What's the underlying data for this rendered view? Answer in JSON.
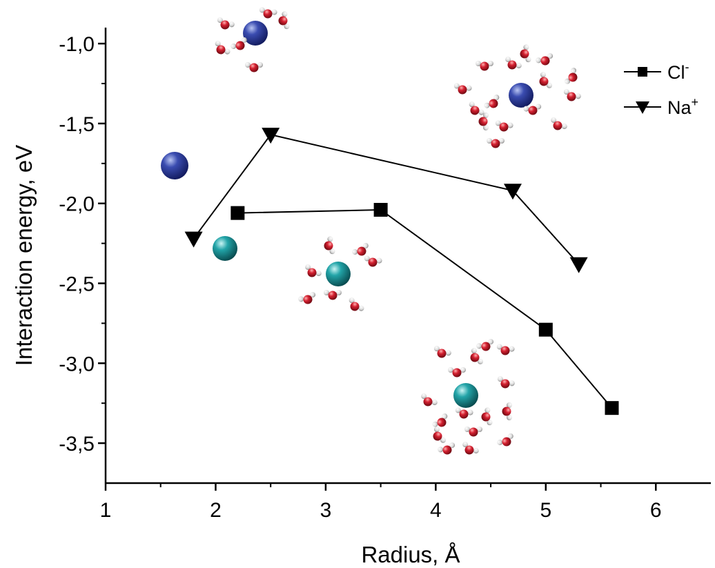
{
  "chart_data": {
    "type": "line",
    "xlabel": "Radius, Å",
    "ylabel": "Interaction energy, eV",
    "xlim": [
      1,
      6.5
    ],
    "ylim": [
      -3.75,
      -0.9
    ],
    "xticks": [
      1,
      2,
      3,
      4,
      5,
      6
    ],
    "xtick_labels": [
      "1",
      "2",
      "3",
      "4",
      "5",
      "6"
    ],
    "yticks": [
      -1.0,
      -1.5,
      -2.0,
      -2.5,
      -3.0,
      -3.5
    ],
    "ytick_labels": [
      "-1,0",
      "-1,5",
      "-2,0",
      "-2,5",
      "-3,0",
      "-3,5"
    ],
    "grid": false,
    "legend_position": "top-right",
    "series": [
      {
        "name": "Cl⁻",
        "label_main": "Cl",
        "label_sup": "-",
        "marker": "square",
        "color": "#000000",
        "x": [
          2.2,
          3.5,
          5.0,
          5.6
        ],
        "y": [
          -2.06,
          -2.04,
          -2.79,
          -3.28
        ]
      },
      {
        "name": "Na⁺",
        "label_main": "Na",
        "label_sup": "+",
        "marker": "triangle-down",
        "color": "#000000",
        "x": [
          1.8,
          2.5,
          4.7,
          5.3
        ],
        "y": [
          -2.22,
          -1.57,
          -1.92,
          -2.38
        ]
      }
    ],
    "colors": {
      "sodium_ion": "#2a3a9a",
      "chloride_ion": "#1e9aa0",
      "oxygen": "#c81e2a",
      "hydrogen": "#e8e8e8"
    }
  }
}
